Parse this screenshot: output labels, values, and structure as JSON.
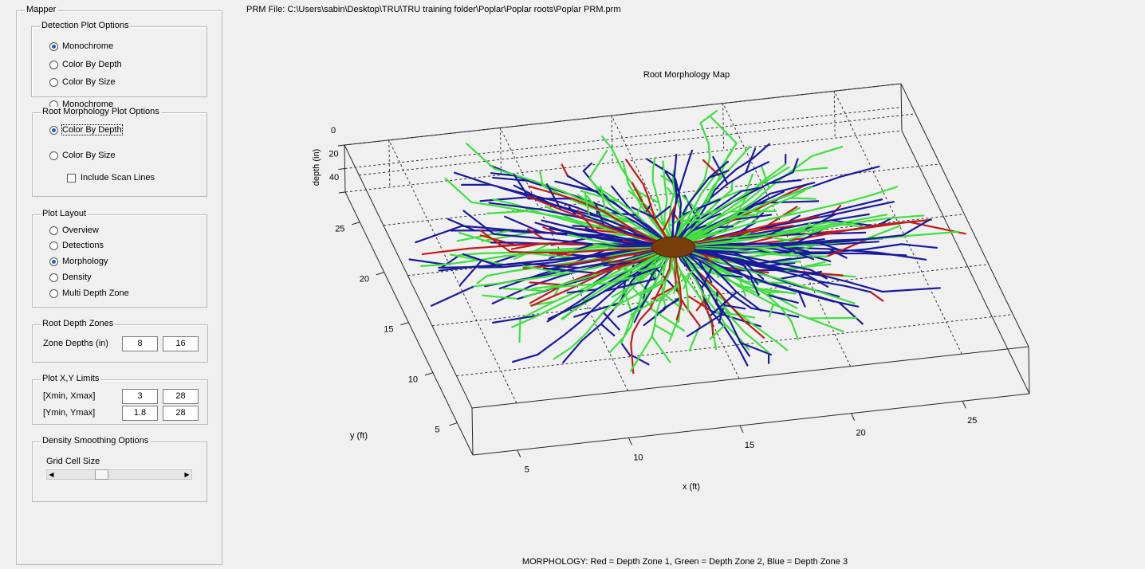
{
  "panel": {
    "title": "Mapper",
    "detection": {
      "title": "Detection Plot Options",
      "options": [
        "Monochrome",
        "Color By Depth",
        "Color By Size"
      ],
      "selected": 0
    },
    "morphology": {
      "title": "Root Morphology Plot Options",
      "hidden_option": "Monochrome",
      "options": [
        "Color By Depth",
        "Color By Size"
      ],
      "selected": 0,
      "checkbox": "Include Scan Lines"
    },
    "layout": {
      "title": "Plot Layout",
      "options": [
        "Overview",
        "Detections",
        "Morphology",
        "Density",
        "Multi Depth Zone"
      ],
      "selected": 2
    },
    "zones": {
      "title": "Root Depth Zones",
      "label": "Zone Depths (in)",
      "values": [
        8,
        16
      ]
    },
    "limits": {
      "title": "Plot X,Y Limits",
      "rows": [
        {
          "label": "[Xmin, Xmax]",
          "values": [
            3,
            28
          ]
        },
        {
          "label": "[Ymin, Ymax]",
          "values": [
            1.8,
            28
          ]
        }
      ]
    },
    "density": {
      "title": "Density Smoothing Options",
      "label": "Grid Cell Size"
    }
  },
  "prm_file": "PRM File: C:\\Users\\sabin\\Desktop\\TRU\\TRU training folder\\Poplar\\Poplar roots\\Poplar PRM.prm",
  "plot": {
    "title": "Root Morphology Map",
    "xlabel": "x (ft)",
    "ylabel": "y (ft)",
    "zlabel": "depth (in)",
    "xlim": [
      3,
      28
    ],
    "ylim": [
      1.8,
      28
    ],
    "zlim": [
      0,
      40
    ],
    "xticks": [
      5,
      10,
      15,
      20,
      25
    ],
    "yticks": [
      5,
      10,
      15,
      20,
      25
    ],
    "zticks": [
      0,
      20,
      40
    ]
  },
  "footer": "MORPHOLOGY: Red = Depth Zone 1, Green = Depth Zone 2, Blue = Depth Zone 3"
}
